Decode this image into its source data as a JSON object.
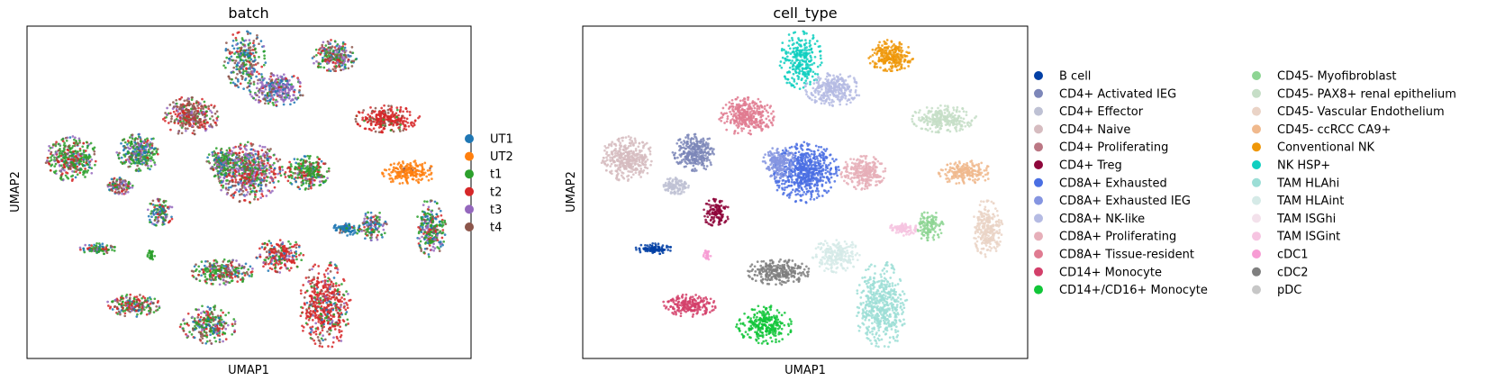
{
  "chart_data": [
    {
      "type": "scatter",
      "title": "batch",
      "xlabel": "UMAP1",
      "ylabel": "UMAP2",
      "grid": false,
      "legend_position": "right",
      "legend": [
        {
          "name": "UT1",
          "color": "#1f77b4"
        },
        {
          "name": "UT2",
          "color": "#ff7f0e"
        },
        {
          "name": "t1",
          "color": "#2ca02c"
        },
        {
          "name": "t2",
          "color": "#d62728"
        },
        {
          "name": "t3",
          "color": "#9467bd"
        },
        {
          "name": "t4",
          "color": "#8c564b"
        }
      ],
      "clusters": [
        {
          "x": 0.49,
          "y": 0.9,
          "a": 0.045,
          "b": 0.085,
          "n": 260,
          "mix": [
            0.3,
            0.0,
            0.3,
            0.1,
            0.1,
            0.2
          ]
        },
        {
          "x": 0.69,
          "y": 0.91,
          "a": 0.05,
          "b": 0.045,
          "n": 240,
          "mix": [
            0.1,
            0.0,
            0.3,
            0.2,
            0.2,
            0.2
          ]
        },
        {
          "x": 0.56,
          "y": 0.81,
          "a": 0.06,
          "b": 0.048,
          "n": 300,
          "mix": [
            0.2,
            0.0,
            0.1,
            0.1,
            0.5,
            0.1
          ]
        },
        {
          "x": 0.37,
          "y": 0.73,
          "a": 0.06,
          "b": 0.055,
          "n": 330,
          "mix": [
            0.0,
            0.0,
            0.1,
            0.3,
            0.2,
            0.4
          ]
        },
        {
          "x": 0.81,
          "y": 0.72,
          "a": 0.07,
          "b": 0.04,
          "n": 270,
          "mix": [
            0.0,
            0.0,
            0.05,
            0.85,
            0.0,
            0.1
          ]
        },
        {
          "x": 0.1,
          "y": 0.6,
          "a": 0.055,
          "b": 0.065,
          "n": 370,
          "mix": [
            0.05,
            0.0,
            0.45,
            0.2,
            0.15,
            0.15
          ]
        },
        {
          "x": 0.25,
          "y": 0.62,
          "a": 0.045,
          "b": 0.055,
          "n": 300,
          "mix": [
            0.2,
            0.0,
            0.45,
            0.1,
            0.15,
            0.1
          ]
        },
        {
          "x": 0.5,
          "y": 0.56,
          "a": 0.07,
          "b": 0.085,
          "n": 580,
          "mix": [
            0.1,
            0.0,
            0.2,
            0.2,
            0.3,
            0.2
          ]
        },
        {
          "x": 0.44,
          "y": 0.59,
          "a": 0.035,
          "b": 0.045,
          "n": 180,
          "mix": [
            0.1,
            0.0,
            0.5,
            0.1,
            0.2,
            0.1
          ]
        },
        {
          "x": 0.63,
          "y": 0.56,
          "a": 0.05,
          "b": 0.048,
          "n": 280,
          "mix": [
            0.1,
            0.0,
            0.5,
            0.2,
            0.1,
            0.1
          ]
        },
        {
          "x": 0.21,
          "y": 0.52,
          "a": 0.028,
          "b": 0.025,
          "n": 110,
          "mix": [
            0.1,
            0.0,
            0.2,
            0.2,
            0.2,
            0.3
          ]
        },
        {
          "x": 0.86,
          "y": 0.56,
          "a": 0.06,
          "b": 0.033,
          "n": 200,
          "mix": [
            0.0,
            0.95,
            0.0,
            0.0,
            0.0,
            0.05
          ]
        },
        {
          "x": 0.3,
          "y": 0.44,
          "a": 0.028,
          "b": 0.042,
          "n": 130,
          "mix": [
            0.2,
            0.0,
            0.3,
            0.2,
            0.2,
            0.1
          ]
        },
        {
          "x": 0.72,
          "y": 0.39,
          "a": 0.03,
          "b": 0.022,
          "n": 90,
          "mix": [
            0.85,
            0.0,
            0.05,
            0.05,
            0.0,
            0.05
          ]
        },
        {
          "x": 0.78,
          "y": 0.4,
          "a": 0.028,
          "b": 0.045,
          "n": 120,
          "mix": [
            0.3,
            0.0,
            0.2,
            0.1,
            0.2,
            0.2
          ]
        },
        {
          "x": 0.91,
          "y": 0.39,
          "a": 0.032,
          "b": 0.085,
          "n": 260,
          "mix": [
            0.2,
            0.0,
            0.4,
            0.2,
            0.1,
            0.1
          ]
        },
        {
          "x": 0.16,
          "y": 0.33,
          "a": 0.04,
          "b": 0.016,
          "n": 100,
          "mix": [
            0.1,
            0.0,
            0.5,
            0.2,
            0.1,
            0.1
          ]
        },
        {
          "x": 0.28,
          "y": 0.31,
          "a": 0.008,
          "b": 0.02,
          "n": 30,
          "mix": [
            0.0,
            0.0,
            1.0,
            0.0,
            0.0,
            0.0
          ]
        },
        {
          "x": 0.44,
          "y": 0.26,
          "a": 0.07,
          "b": 0.038,
          "n": 260,
          "mix": [
            0.1,
            0.0,
            0.4,
            0.2,
            0.1,
            0.2
          ]
        },
        {
          "x": 0.57,
          "y": 0.31,
          "a": 0.05,
          "b": 0.05,
          "n": 220,
          "mix": [
            0.1,
            0.0,
            0.2,
            0.5,
            0.1,
            0.1
          ]
        },
        {
          "x": 0.24,
          "y": 0.16,
          "a": 0.06,
          "b": 0.032,
          "n": 200,
          "mix": [
            0.1,
            0.0,
            0.4,
            0.2,
            0.1,
            0.2
          ]
        },
        {
          "x": 0.41,
          "y": 0.1,
          "a": 0.06,
          "b": 0.055,
          "n": 260,
          "mix": [
            0.1,
            0.0,
            0.4,
            0.2,
            0.1,
            0.2
          ]
        },
        {
          "x": 0.67,
          "y": 0.16,
          "a": 0.055,
          "b": 0.125,
          "n": 480,
          "mix": [
            0.05,
            0.0,
            0.1,
            0.65,
            0.1,
            0.1
          ]
        }
      ]
    },
    {
      "type": "scatter",
      "title": "cell_type",
      "xlabel": "UMAP1",
      "ylabel": "UMAP2",
      "grid": false,
      "legend_position": "right",
      "legend": [
        {
          "name": "B cell",
          "color": "#023fa5"
        },
        {
          "name": "CD4+ Activated IEG",
          "color": "#7d87b9"
        },
        {
          "name": "CD4+ Effector",
          "color": "#bec1d4"
        },
        {
          "name": "CD4+ Naive",
          "color": "#d6bcc0"
        },
        {
          "name": "CD4+ Proliferating",
          "color": "#bb7784"
        },
        {
          "name": "CD4+ Treg",
          "color": "#8e063b"
        },
        {
          "name": "CD8A+ Exhausted",
          "color": "#4a6fe3"
        },
        {
          "name": "CD8A+ Exhausted IEG",
          "color": "#8595e1"
        },
        {
          "name": "CD8A+ NK-like",
          "color": "#b5bbe3"
        },
        {
          "name": "CD8A+ Proliferating",
          "color": "#e6afb9"
        },
        {
          "name": "CD8A+ Tissue-resident",
          "color": "#e07b91"
        },
        {
          "name": "CD14+ Monocyte",
          "color": "#d33f6a"
        },
        {
          "name": "CD14+/CD16+ Monocyte",
          "color": "#11c638"
        },
        {
          "name": "CD45- Myofibroblast",
          "color": "#8dd593"
        },
        {
          "name": "CD45- PAX8+ renal epithelium",
          "color": "#c6dec7"
        },
        {
          "name": "CD45- Vascular Endothelium",
          "color": "#ead3c6"
        },
        {
          "name": "CD45- ccRCC CA9+",
          "color": "#f0b98d"
        },
        {
          "name": "Conventional NK",
          "color": "#ef9708"
        },
        {
          "name": "NK HSP+",
          "color": "#0fcfc0"
        },
        {
          "name": "TAM HLAhi",
          "color": "#9cded6"
        },
        {
          "name": "TAM HLAint",
          "color": "#d5eae7"
        },
        {
          "name": "TAM ISGhi",
          "color": "#f3e1eb"
        },
        {
          "name": "TAM ISGint",
          "color": "#f6c4e1"
        },
        {
          "name": "cDC1",
          "color": "#f79cd4"
        },
        {
          "name": "cDC2",
          "color": "#7f7f7f"
        },
        {
          "name": "pDC",
          "color": "#c7c7c7"
        }
      ],
      "clusters": [
        {
          "x": 0.49,
          "y": 0.9,
          "a": 0.045,
          "b": 0.085,
          "n": 260,
          "label": 18
        },
        {
          "x": 0.69,
          "y": 0.91,
          "a": 0.05,
          "b": 0.045,
          "n": 240,
          "label": 17
        },
        {
          "x": 0.56,
          "y": 0.81,
          "a": 0.06,
          "b": 0.048,
          "n": 300,
          "label": 8
        },
        {
          "x": 0.37,
          "y": 0.73,
          "a": 0.06,
          "b": 0.055,
          "n": 330,
          "label": 10
        },
        {
          "x": 0.81,
          "y": 0.72,
          "a": 0.07,
          "b": 0.04,
          "n": 270,
          "label": 14
        },
        {
          "x": 0.1,
          "y": 0.6,
          "a": 0.055,
          "b": 0.065,
          "n": 370,
          "label": 3
        },
        {
          "x": 0.25,
          "y": 0.62,
          "a": 0.045,
          "b": 0.055,
          "n": 300,
          "label": 1
        },
        {
          "x": 0.5,
          "y": 0.56,
          "a": 0.07,
          "b": 0.085,
          "n": 580,
          "label": 6
        },
        {
          "x": 0.44,
          "y": 0.59,
          "a": 0.035,
          "b": 0.045,
          "n": 180,
          "label": 7
        },
        {
          "x": 0.63,
          "y": 0.56,
          "a": 0.05,
          "b": 0.048,
          "n": 280,
          "label": 9
        },
        {
          "x": 0.21,
          "y": 0.52,
          "a": 0.028,
          "b": 0.025,
          "n": 110,
          "label": 2
        },
        {
          "x": 0.86,
          "y": 0.56,
          "a": 0.06,
          "b": 0.033,
          "n": 200,
          "label": 16
        },
        {
          "x": 0.3,
          "y": 0.44,
          "a": 0.028,
          "b": 0.042,
          "n": 130,
          "label": 5
        },
        {
          "x": 0.72,
          "y": 0.39,
          "a": 0.03,
          "b": 0.022,
          "n": 90,
          "label": 22
        },
        {
          "x": 0.78,
          "y": 0.4,
          "a": 0.028,
          "b": 0.045,
          "n": 120,
          "label": 13
        },
        {
          "x": 0.91,
          "y": 0.39,
          "a": 0.032,
          "b": 0.085,
          "n": 260,
          "label": 15
        },
        {
          "x": 0.16,
          "y": 0.33,
          "a": 0.04,
          "b": 0.016,
          "n": 100,
          "label": 0
        },
        {
          "x": 0.28,
          "y": 0.31,
          "a": 0.008,
          "b": 0.02,
          "n": 30,
          "label": 23
        },
        {
          "x": 0.44,
          "y": 0.26,
          "a": 0.07,
          "b": 0.038,
          "n": 260,
          "label": 24
        },
        {
          "x": 0.57,
          "y": 0.31,
          "a": 0.05,
          "b": 0.05,
          "n": 220,
          "label": 20
        },
        {
          "x": 0.24,
          "y": 0.16,
          "a": 0.06,
          "b": 0.032,
          "n": 200,
          "label": 11
        },
        {
          "x": 0.41,
          "y": 0.1,
          "a": 0.06,
          "b": 0.055,
          "n": 260,
          "label": 12
        },
        {
          "x": 0.67,
          "y": 0.16,
          "a": 0.055,
          "b": 0.125,
          "n": 480,
          "label": 19
        }
      ]
    }
  ]
}
